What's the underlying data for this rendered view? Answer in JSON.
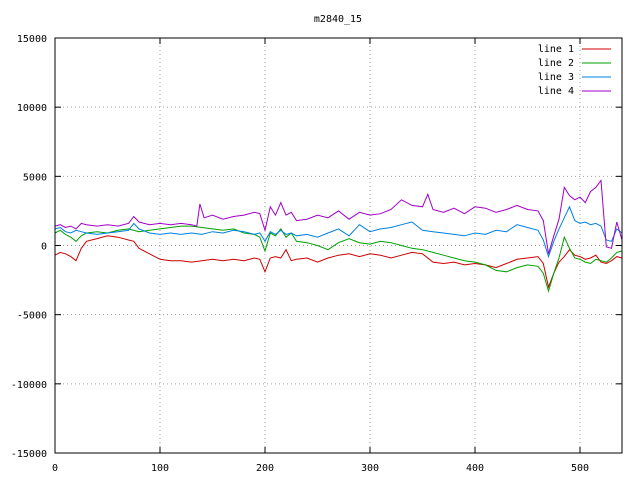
{
  "chart_data": {
    "type": "line",
    "title": "m2840_15",
    "xlabel": "",
    "ylabel": "",
    "xlim": [
      0,
      540
    ],
    "ylim": [
      -15000,
      15000
    ],
    "grid": true,
    "legend_position": "top-right",
    "x_ticks": [
      0,
      100,
      200,
      300,
      400,
      500
    ],
    "y_ticks": [
      -15000,
      -10000,
      -5000,
      0,
      5000,
      10000,
      15000
    ],
    "x_tick_labels": [
      "0",
      "100",
      "200",
      "300",
      "400",
      "500"
    ],
    "y_tick_labels": [
      "-15000",
      "-10000",
      "-5000",
      "0",
      "5000",
      "10000",
      "15000"
    ],
    "series": [
      {
        "name": "line 1",
        "color": "#cc0000",
        "points": [
          [
            0,
            -700
          ],
          [
            5,
            -500
          ],
          [
            10,
            -600
          ],
          [
            15,
            -800
          ],
          [
            20,
            -1100
          ],
          [
            25,
            -200
          ],
          [
            30,
            300
          ],
          [
            40,
            500
          ],
          [
            50,
            700
          ],
          [
            60,
            600
          ],
          [
            70,
            400
          ],
          [
            75,
            300
          ],
          [
            80,
            -200
          ],
          [
            90,
            -600
          ],
          [
            100,
            -1000
          ],
          [
            110,
            -1100
          ],
          [
            120,
            -1100
          ],
          [
            130,
            -1200
          ],
          [
            140,
            -1100
          ],
          [
            150,
            -1000
          ],
          [
            160,
            -1100
          ],
          [
            170,
            -1000
          ],
          [
            180,
            -1100
          ],
          [
            190,
            -900
          ],
          [
            195,
            -1000
          ],
          [
            200,
            -1900
          ],
          [
            205,
            -900
          ],
          [
            210,
            -800
          ],
          [
            215,
            -900
          ],
          [
            220,
            -300
          ],
          [
            225,
            -1100
          ],
          [
            230,
            -1000
          ],
          [
            240,
            -900
          ],
          [
            250,
            -1200
          ],
          [
            260,
            -900
          ],
          [
            270,
            -700
          ],
          [
            280,
            -600
          ],
          [
            290,
            -800
          ],
          [
            300,
            -600
          ],
          [
            310,
            -700
          ],
          [
            320,
            -900
          ],
          [
            330,
            -700
          ],
          [
            340,
            -500
          ],
          [
            350,
            -600
          ],
          [
            360,
            -1200
          ],
          [
            370,
            -1300
          ],
          [
            380,
            -1200
          ],
          [
            390,
            -1400
          ],
          [
            400,
            -1300
          ],
          [
            410,
            -1400
          ],
          [
            420,
            -1600
          ],
          [
            430,
            -1300
          ],
          [
            440,
            -1000
          ],
          [
            450,
            -900
          ],
          [
            460,
            -800
          ],
          [
            465,
            -1300
          ],
          [
            470,
            -3000
          ],
          [
            475,
            -2000
          ],
          [
            480,
            -1200
          ],
          [
            485,
            -800
          ],
          [
            490,
            -300
          ],
          [
            495,
            -700
          ],
          [
            500,
            -800
          ],
          [
            505,
            -1000
          ],
          [
            510,
            -900
          ],
          [
            515,
            -700
          ],
          [
            520,
            -1200
          ],
          [
            525,
            -1300
          ],
          [
            530,
            -1100
          ],
          [
            535,
            -800
          ],
          [
            540,
            -900
          ]
        ]
      },
      {
        "name": "line 2",
        "color": "#00a000",
        "points": [
          [
            0,
            900
          ],
          [
            5,
            1100
          ],
          [
            10,
            800
          ],
          [
            15,
            600
          ],
          [
            20,
            300
          ],
          [
            25,
            700
          ],
          [
            30,
            900
          ],
          [
            40,
            1000
          ],
          [
            50,
            900
          ],
          [
            60,
            1100
          ],
          [
            70,
            1200
          ],
          [
            80,
            1000
          ],
          [
            90,
            1100
          ],
          [
            100,
            1200
          ],
          [
            110,
            1300
          ],
          [
            120,
            1400
          ],
          [
            130,
            1400
          ],
          [
            140,
            1300
          ],
          [
            150,
            1200
          ],
          [
            160,
            1100
          ],
          [
            170,
            1200
          ],
          [
            180,
            900
          ],
          [
            190,
            800
          ],
          [
            195,
            600
          ],
          [
            200,
            -400
          ],
          [
            205,
            900
          ],
          [
            210,
            700
          ],
          [
            215,
            1200
          ],
          [
            220,
            600
          ],
          [
            225,
            900
          ],
          [
            230,
            300
          ],
          [
            240,
            200
          ],
          [
            250,
            0
          ],
          [
            260,
            -300
          ],
          [
            270,
            200
          ],
          [
            280,
            500
          ],
          [
            290,
            200
          ],
          [
            300,
            100
          ],
          [
            310,
            300
          ],
          [
            320,
            200
          ],
          [
            330,
            0
          ],
          [
            340,
            -200
          ],
          [
            350,
            -300
          ],
          [
            360,
            -500
          ],
          [
            370,
            -700
          ],
          [
            380,
            -900
          ],
          [
            390,
            -1100
          ],
          [
            400,
            -1200
          ],
          [
            410,
            -1400
          ],
          [
            420,
            -1800
          ],
          [
            430,
            -1900
          ],
          [
            440,
            -1600
          ],
          [
            450,
            -1400
          ],
          [
            460,
            -1500
          ],
          [
            465,
            -2000
          ],
          [
            470,
            -3300
          ],
          [
            475,
            -2000
          ],
          [
            480,
            -900
          ],
          [
            485,
            600
          ],
          [
            490,
            -200
          ],
          [
            495,
            -900
          ],
          [
            500,
            -1000
          ],
          [
            505,
            -1200
          ],
          [
            510,
            -1300
          ],
          [
            515,
            -1000
          ],
          [
            520,
            -1100
          ],
          [
            525,
            -1200
          ],
          [
            530,
            -900
          ],
          [
            535,
            -500
          ],
          [
            540,
            -400
          ]
        ]
      },
      {
        "name": "line 3",
        "color": "#0080e0",
        "points": [
          [
            0,
            1200
          ],
          [
            5,
            1300
          ],
          [
            10,
            1000
          ],
          [
            15,
            900
          ],
          [
            20,
            1100
          ],
          [
            25,
            1000
          ],
          [
            30,
            900
          ],
          [
            40,
            800
          ],
          [
            50,
            900
          ],
          [
            60,
            1000
          ],
          [
            70,
            1100
          ],
          [
            75,
            1600
          ],
          [
            80,
            1200
          ],
          [
            90,
            900
          ],
          [
            100,
            800
          ],
          [
            110,
            900
          ],
          [
            120,
            800
          ],
          [
            130,
            900
          ],
          [
            140,
            800
          ],
          [
            150,
            1000
          ],
          [
            160,
            900
          ],
          [
            170,
            1100
          ],
          [
            180,
            1000
          ],
          [
            190,
            800
          ],
          [
            195,
            900
          ],
          [
            200,
            300
          ],
          [
            205,
            1000
          ],
          [
            210,
            800
          ],
          [
            215,
            1100
          ],
          [
            220,
            800
          ],
          [
            225,
            900
          ],
          [
            230,
            700
          ],
          [
            240,
            800
          ],
          [
            250,
            600
          ],
          [
            260,
            900
          ],
          [
            270,
            1200
          ],
          [
            280,
            700
          ],
          [
            290,
            1500
          ],
          [
            300,
            1000
          ],
          [
            310,
            1200
          ],
          [
            320,
            1300
          ],
          [
            330,
            1500
          ],
          [
            340,
            1700
          ],
          [
            350,
            1100
          ],
          [
            360,
            1000
          ],
          [
            370,
            900
          ],
          [
            380,
            800
          ],
          [
            390,
            700
          ],
          [
            400,
            900
          ],
          [
            410,
            800
          ],
          [
            420,
            1100
          ],
          [
            430,
            1000
          ],
          [
            440,
            1500
          ],
          [
            450,
            1300
          ],
          [
            460,
            1100
          ],
          [
            465,
            400
          ],
          [
            470,
            -800
          ],
          [
            475,
            300
          ],
          [
            480,
            1200
          ],
          [
            485,
            2000
          ],
          [
            490,
            2800
          ],
          [
            495,
            1800
          ],
          [
            500,
            1600
          ],
          [
            505,
            1700
          ],
          [
            510,
            1500
          ],
          [
            515,
            1600
          ],
          [
            520,
            1400
          ],
          [
            525,
            400
          ],
          [
            530,
            300
          ],
          [
            535,
            1200
          ],
          [
            540,
            900
          ]
        ]
      },
      {
        "name": "line 4",
        "color": "#a000c8",
        "points": [
          [
            0,
            1400
          ],
          [
            5,
            1500
          ],
          [
            10,
            1300
          ],
          [
            15,
            1400
          ],
          [
            20,
            1200
          ],
          [
            25,
            1600
          ],
          [
            30,
            1500
          ],
          [
            40,
            1400
          ],
          [
            50,
            1500
          ],
          [
            60,
            1400
          ],
          [
            70,
            1600
          ],
          [
            75,
            2100
          ],
          [
            80,
            1700
          ],
          [
            90,
            1500
          ],
          [
            100,
            1600
          ],
          [
            110,
            1500
          ],
          [
            120,
            1600
          ],
          [
            130,
            1500
          ],
          [
            135,
            1400
          ],
          [
            138,
            3000
          ],
          [
            142,
            2000
          ],
          [
            150,
            2200
          ],
          [
            160,
            1900
          ],
          [
            170,
            2100
          ],
          [
            180,
            2200
          ],
          [
            190,
            2400
          ],
          [
            195,
            2300
          ],
          [
            200,
            1100
          ],
          [
            205,
            2800
          ],
          [
            210,
            2200
          ],
          [
            215,
            3100
          ],
          [
            220,
            2200
          ],
          [
            225,
            2400
          ],
          [
            230,
            1800
          ],
          [
            240,
            1900
          ],
          [
            250,
            2200
          ],
          [
            260,
            2000
          ],
          [
            270,
            2500
          ],
          [
            280,
            1900
          ],
          [
            290,
            2400
          ],
          [
            300,
            2200
          ],
          [
            310,
            2300
          ],
          [
            320,
            2600
          ],
          [
            330,
            3300
          ],
          [
            340,
            2900
          ],
          [
            350,
            2800
          ],
          [
            355,
            3700
          ],
          [
            360,
            2600
          ],
          [
            370,
            2400
          ],
          [
            380,
            2700
          ],
          [
            390,
            2300
          ],
          [
            400,
            2800
          ],
          [
            410,
            2700
          ],
          [
            420,
            2400
          ],
          [
            430,
            2600
          ],
          [
            440,
            2900
          ],
          [
            450,
            2600
          ],
          [
            460,
            2500
          ],
          [
            465,
            1800
          ],
          [
            470,
            -600
          ],
          [
            475,
            700
          ],
          [
            480,
            1900
          ],
          [
            485,
            4200
          ],
          [
            490,
            3600
          ],
          [
            495,
            3300
          ],
          [
            500,
            3500
          ],
          [
            505,
            3100
          ],
          [
            510,
            3900
          ],
          [
            515,
            4200
          ],
          [
            520,
            4700
          ],
          [
            525,
            -100
          ],
          [
            530,
            -200
          ],
          [
            535,
            1700
          ],
          [
            540,
            400
          ]
        ]
      }
    ]
  }
}
